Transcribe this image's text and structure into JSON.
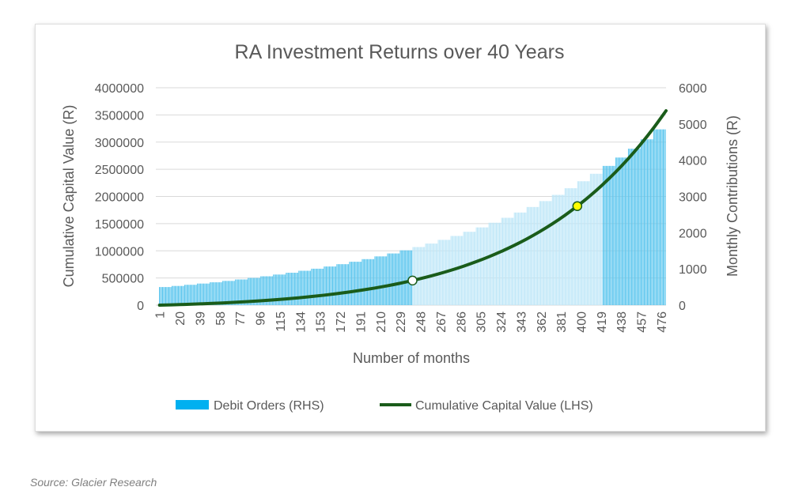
{
  "source": "Source: Glacier Research",
  "chart_data": {
    "type": "bar+line",
    "title": "RA Investment Returns over 40 Years",
    "xlabel": "Number of months",
    "ylabel_left": "Cumulative Capital Value (R)",
    "ylabel_right": "Monthly Contributions (R)",
    "ylim_left": [
      0,
      4000000
    ],
    "ylim_right": [
      0,
      6000
    ],
    "yticks_left": [
      "0",
      "500000",
      "1000000",
      "1500000",
      "2000000",
      "2500000",
      "3000000",
      "3500000",
      "4000000"
    ],
    "yticks_right": [
      "0",
      "1000",
      "2000",
      "3000",
      "4000",
      "5000",
      "6000"
    ],
    "xlim": [
      1,
      480
    ],
    "xticks": [
      "1",
      "20",
      "39",
      "58",
      "77",
      "96",
      "115",
      "134",
      "153",
      "172",
      "191",
      "210",
      "229",
      "248",
      "267",
      "286",
      "305",
      "324",
      "343",
      "362",
      "381",
      "400",
      "419",
      "438",
      "457",
      "476"
    ],
    "grid": true,
    "legend_position": "bottom",
    "series": [
      {
        "name": "Debit Orders (RHS)",
        "type": "bar",
        "axis": "right",
        "color": "#5cc6ee",
        "highlight_color": "#bfe7f8",
        "highlight_range_months": [
          241,
          420
        ],
        "monthly_value_by_year": [
          500,
          530,
          562,
          596,
          631,
          669,
          709,
          752,
          797,
          845,
          895,
          949,
          1006,
          1067,
          1131,
          1198,
          1270,
          1346,
          1427,
          1513,
          1604,
          1700,
          1802,
          1910,
          2025,
          2146,
          2275,
          2411,
          2556,
          2709,
          2872,
          3044,
          3227,
          3420,
          3626,
          3843,
          4074,
          4318,
          4577,
          4852
        ]
      },
      {
        "name": "Cumulative Capital Value (LHS)",
        "type": "line",
        "axis": "left",
        "color": "#1a5c1a",
        "x_months": [
          0,
          12,
          24,
          36,
          48,
          60,
          72,
          84,
          96,
          108,
          120,
          132,
          144,
          156,
          168,
          180,
          192,
          204,
          216,
          228,
          240,
          252,
          264,
          276,
          288,
          300,
          312,
          324,
          336,
          348,
          360,
          372,
          384,
          396,
          408,
          420,
          432,
          444,
          456,
          468,
          480
        ],
        "values": [
          0,
          6215,
          13302,
          21353,
          30469,
          40762,
          52352,
          65373,
          79967,
          96293,
          114525,
          134851,
          157477,
          182628,
          210550,
          241509,
          275797,
          313733,
          355662,
          401962,
          453044,
          509356,
          571386,
          639664,
          714769,
          797330,
          888031,
          987615,
          1096891,
          1216741,
          1348121,
          1492070,
          1649720,
          1822300,
          2011145,
          2217705,
          2443555,
          2690407,
          2960119,
          3254710,
          3576370
        ],
        "markers": [
          {
            "month": 240,
            "value": 453044,
            "fill": "#ffffff"
          },
          {
            "month": 396,
            "value": 1822300,
            "fill": "#ffff00"
          }
        ]
      }
    ]
  }
}
